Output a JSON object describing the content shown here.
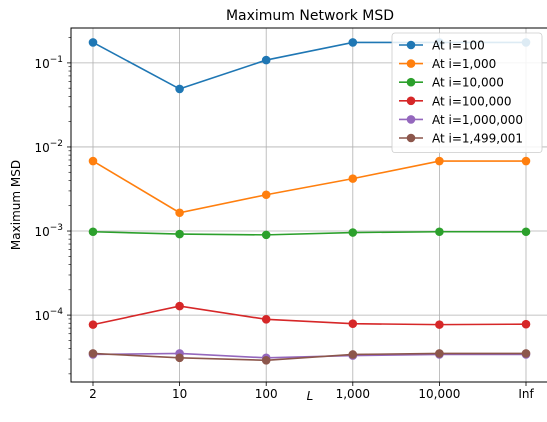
{
  "chart_data": {
    "type": "line",
    "title": "Maximum Network MSD",
    "xlabel": "L",
    "ylabel": "Maximum MSD",
    "categories": [
      "2",
      "10",
      "100",
      "1,000",
      "10,000",
      "Inf"
    ],
    "yscale": "log",
    "ylim": [
      1.6e-05,
      0.26
    ],
    "yticks": [
      {
        "value": 0.0001,
        "mantissa": "10",
        "exp": "−4"
      },
      {
        "value": 0.001,
        "mantissa": "10",
        "exp": "−3"
      },
      {
        "value": 0.01,
        "mantissa": "10",
        "exp": "−2"
      },
      {
        "value": 0.1,
        "mantissa": "10",
        "exp": "−1"
      }
    ],
    "grid": true,
    "legend_position": "top-right",
    "series": [
      {
        "name": "At i=100",
        "color": "#1f77b4",
        "values": [
          0.175,
          0.049,
          0.108,
          0.175,
          0.175,
          0.175
        ]
      },
      {
        "name": "At i=1,000",
        "color": "#ff7f0e",
        "values": [
          0.0068,
          0.00165,
          0.0027,
          0.0042,
          0.0068,
          0.0068
        ]
      },
      {
        "name": "At i=10,000",
        "color": "#2ca02c",
        "values": [
          0.00098,
          0.00092,
          0.0009,
          0.00096,
          0.00098,
          0.00098
        ]
      },
      {
        "name": "At i=100,000",
        "color": "#d62728",
        "values": [
          7.7e-05,
          0.000128,
          8.9e-05,
          7.9e-05,
          7.7e-05,
          7.8e-05
        ]
      },
      {
        "name": "At i=1,000,000",
        "color": "#9467bd",
        "values": [
          3.4e-05,
          3.5e-05,
          3.1e-05,
          3.3e-05,
          3.4e-05,
          3.4e-05
        ]
      },
      {
        "name": "At i=1,499,001",
        "color": "#8c564b",
        "values": [
          3.5e-05,
          3.1e-05,
          2.9e-05,
          3.4e-05,
          3.5e-05,
          3.5e-05
        ]
      }
    ]
  }
}
